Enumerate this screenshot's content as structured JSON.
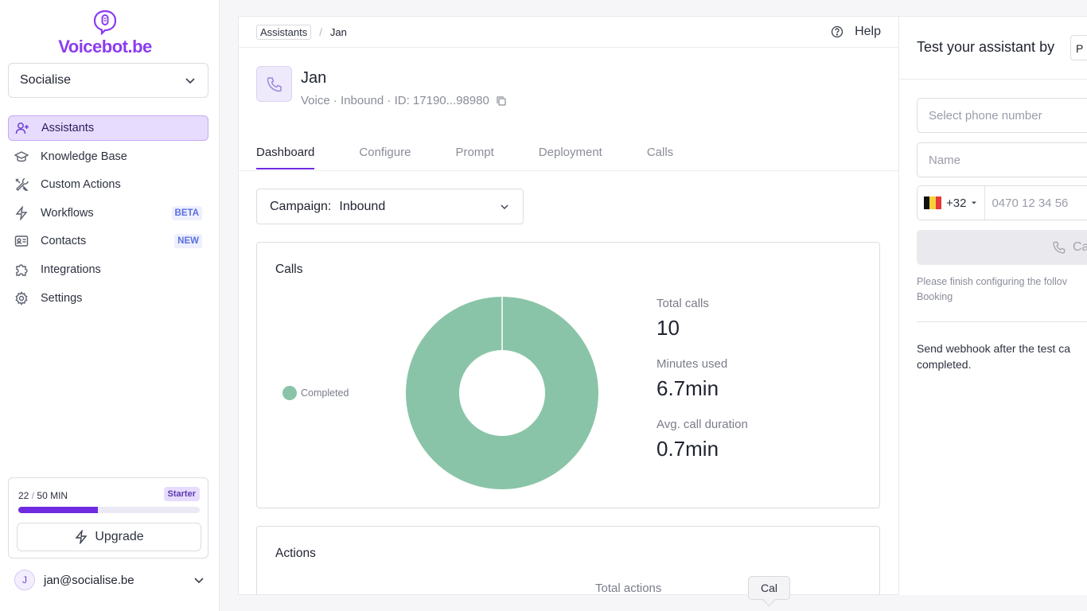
{
  "brand": {
    "name": "Voicebot.be",
    "logo_icon": "mic-bubble-icon",
    "color": "#8b3cf0"
  },
  "org_select": {
    "value": "Socialise"
  },
  "sidebar": {
    "items": [
      {
        "label": "Assistants",
        "icon": "user-plus-icon",
        "active": true,
        "badge": ""
      },
      {
        "label": "Knowledge Base",
        "icon": "graduation-cap-icon",
        "active": false,
        "badge": ""
      },
      {
        "label": "Custom Actions",
        "icon": "tools-icon",
        "active": false,
        "badge": ""
      },
      {
        "label": "Workflows",
        "icon": "lightning-icon",
        "active": false,
        "badge": "BETA"
      },
      {
        "label": "Contacts",
        "icon": "contact-card-icon",
        "active": false,
        "badge": "NEW"
      },
      {
        "label": "Integrations",
        "icon": "puzzle-icon",
        "active": false,
        "badge": ""
      },
      {
        "label": "Settings",
        "icon": "gear-icon",
        "active": false,
        "badge": ""
      }
    ]
  },
  "usage": {
    "used": "22",
    "separator": "/",
    "limit": "50 MIN",
    "plan": "Starter",
    "fraction": 0.44,
    "upgrade_label": "Upgrade"
  },
  "user": {
    "initial": "J",
    "email": "jan@socialise.be"
  },
  "breadcrumb": {
    "parent": "Assistants",
    "separator": "/",
    "current": "Jan"
  },
  "help_label": "Help",
  "assistant": {
    "name": "Jan",
    "meta": "Voice · Inbound · ID: 17190...98980"
  },
  "tabs": [
    "Dashboard",
    "Configure",
    "Prompt",
    "Deployment",
    "Calls"
  ],
  "active_tab": 0,
  "campaign": {
    "label": "Campaign:",
    "value": "Inbound"
  },
  "calls_card": {
    "title": "Calls",
    "stats": [
      {
        "label": "Total calls",
        "value": "10"
      },
      {
        "label": "Minutes used",
        "value": "6.7min"
      },
      {
        "label": "Avg. call duration",
        "value": "0.7min"
      }
    ]
  },
  "chart_data": {
    "type": "pie",
    "categories": [
      "Completed"
    ],
    "values": [
      10
    ],
    "colors": [
      "#8ac4a8"
    ],
    "legend": "left"
  },
  "actions_card": {
    "title": "Actions",
    "subtitle": "Total actions"
  },
  "test_panel": {
    "title": "Test your assistant by",
    "pill": "P",
    "phone_select_placeholder": "Select phone number",
    "name_placeholder": "Name",
    "country_code": "+32",
    "phone_placeholder": "0470 12 34 56",
    "call_button": "Ca",
    "note_line1": "Please finish configuring the follov",
    "note_line2": "Booking",
    "webhook_line1": "Send webhook after the test ca",
    "webhook_line2": "completed."
  },
  "tooltip": "Cal"
}
